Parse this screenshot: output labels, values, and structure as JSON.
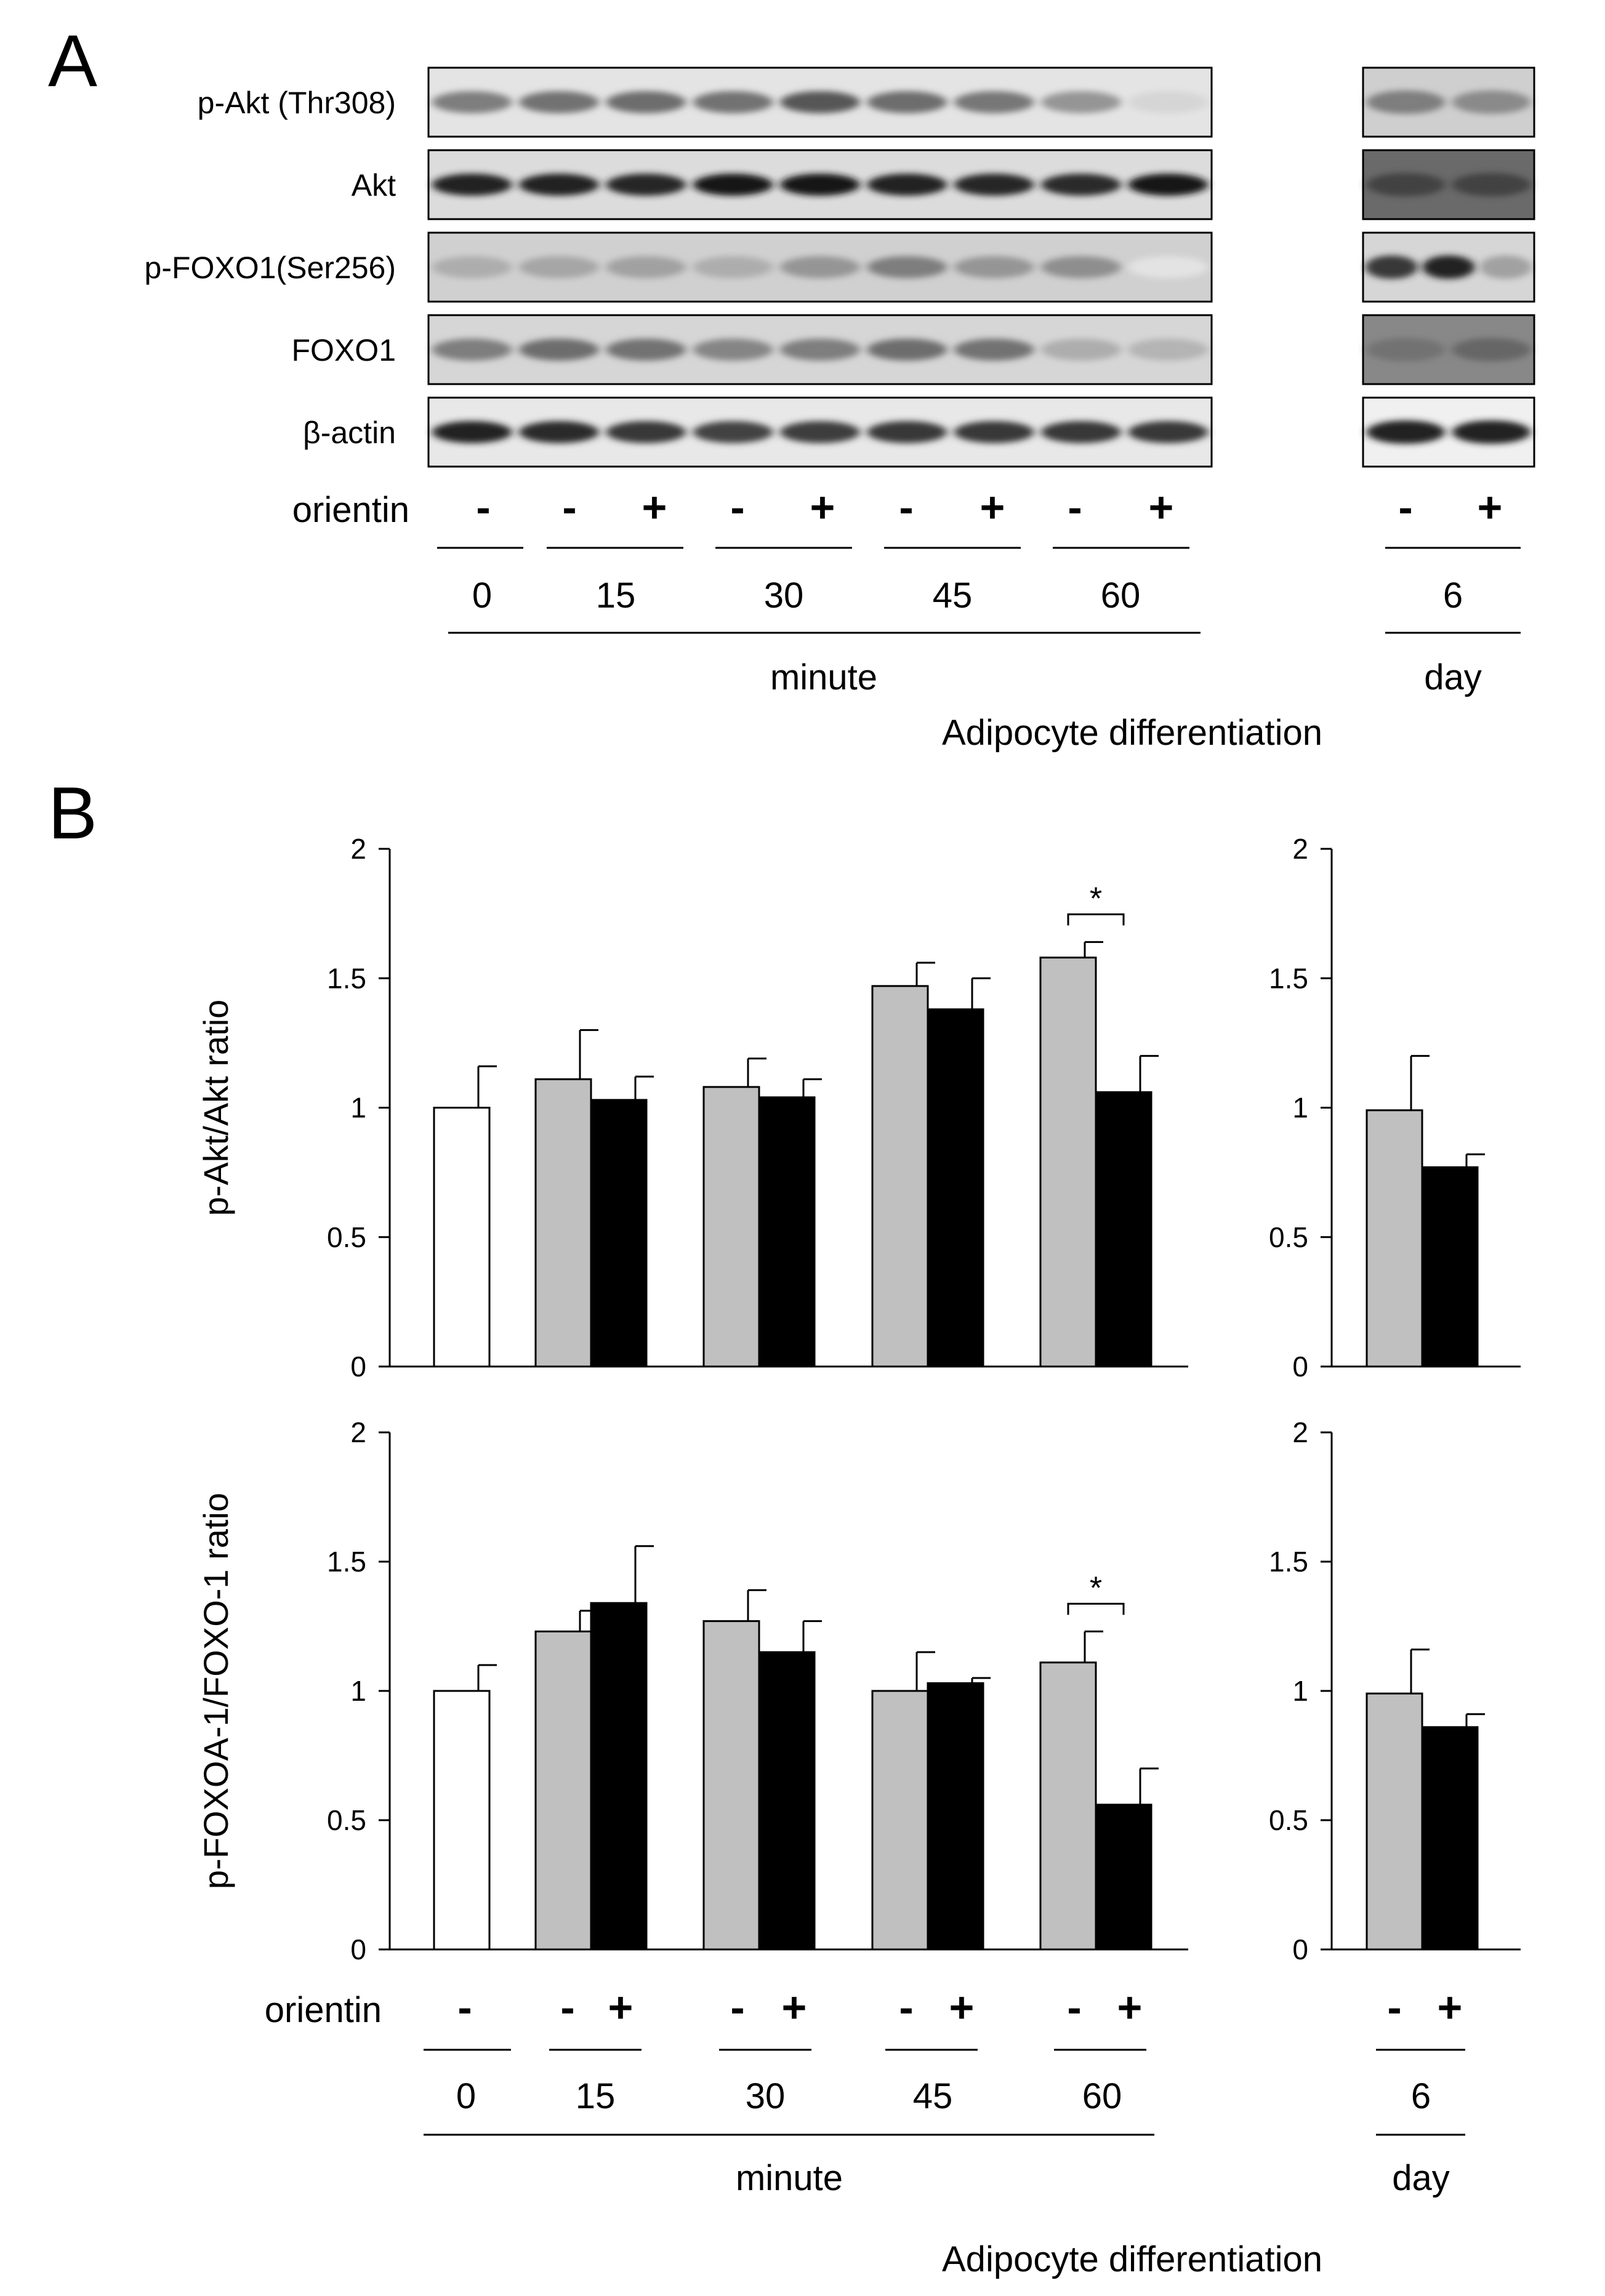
{
  "panel_a": {
    "letter": "A",
    "blot_labels": [
      "p-Akt (Thr308)",
      "Akt",
      "p-FOXO1(Ser256)",
      "FOXO1",
      "β-actin"
    ],
    "treatment_label": "orientin",
    "minute_signs": [
      "-",
      "-",
      "+",
      "-",
      "+",
      "-",
      "+",
      "-",
      "+"
    ],
    "day_signs": [
      "-",
      "+"
    ],
    "minute_times": [
      "0",
      "15",
      "30",
      "45",
      "60"
    ],
    "day_times": [
      "6"
    ],
    "minute_unit": "minute",
    "day_unit": "day",
    "caption": "Adipocyte differentiation"
  },
  "panel_b": {
    "letter": "B",
    "treatment_label": "orientin",
    "minute_signs": [
      "-",
      "-",
      "+",
      "-",
      "+",
      "-",
      "+",
      "-",
      "+"
    ],
    "day_signs": [
      "-",
      "+"
    ],
    "minute_times": [
      "0",
      "15",
      "30",
      "45",
      "60"
    ],
    "day_times": [
      "6"
    ],
    "minute_unit": "minute",
    "day_unit": "day",
    "caption": "Adipocyte differentiation",
    "significance_mark": "*"
  },
  "colors": {
    "control": "#ffffff",
    "vehicle": "#c0c0c0",
    "orientin": "#000000",
    "axis": "#000000"
  },
  "chart_data": [
    {
      "type": "bar",
      "panel": "B-top-minute",
      "ylabel": "p-Akt/Akt ratio",
      "ylim": [
        0,
        2
      ],
      "yticks": [
        "0",
        "0.5",
        "1",
        "1.5",
        "2"
      ],
      "categories": [
        "0",
        "15",
        "30",
        "45",
        "60"
      ],
      "series": [
        {
          "name": "control",
          "values": [
            1.0,
            null,
            null,
            null,
            null
          ],
          "errors": [
            0.16,
            null,
            null,
            null,
            null
          ]
        },
        {
          "name": "orientin -",
          "values": [
            null,
            1.11,
            1.08,
            1.47,
            1.58
          ],
          "errors": [
            null,
            0.19,
            0.11,
            0.09,
            0.06
          ]
        },
        {
          "name": "orientin +",
          "values": [
            null,
            1.03,
            1.04,
            1.38,
            1.06
          ],
          "errors": [
            null,
            0.09,
            0.07,
            0.12,
            0.14
          ]
        }
      ],
      "annotations": [
        {
          "category": "60",
          "text": "*"
        }
      ]
    },
    {
      "type": "bar",
      "panel": "B-top-day",
      "ylabel": "",
      "ylim": [
        0,
        2
      ],
      "yticks": [
        "0",
        "0.5",
        "1",
        "1.5",
        "2"
      ],
      "categories": [
        "6"
      ],
      "series": [
        {
          "name": "orientin -",
          "values": [
            0.99
          ],
          "errors": [
            0.21
          ]
        },
        {
          "name": "orientin +",
          "values": [
            0.77
          ],
          "errors": [
            0.05
          ]
        }
      ]
    },
    {
      "type": "bar",
      "panel": "B-bottom-minute",
      "ylabel": "p-FOXOA-1/FOXO-1 ratio",
      "ylim": [
        0,
        2
      ],
      "yticks": [
        "0",
        "0.5",
        "1",
        "1.5",
        "2"
      ],
      "categories": [
        "0",
        "15",
        "30",
        "45",
        "60"
      ],
      "series": [
        {
          "name": "control",
          "values": [
            1.0,
            null,
            null,
            null,
            null
          ],
          "errors": [
            0.1,
            null,
            null,
            null,
            null
          ]
        },
        {
          "name": "orientin -",
          "values": [
            null,
            1.23,
            1.27,
            1.0,
            1.11
          ],
          "errors": [
            null,
            0.08,
            0.12,
            0.15,
            0.12
          ]
        },
        {
          "name": "orientin +",
          "values": [
            null,
            1.34,
            1.15,
            1.03,
            0.56
          ],
          "errors": [
            null,
            0.22,
            0.12,
            0.02,
            0.14
          ]
        }
      ],
      "annotations": [
        {
          "category": "60",
          "text": "*"
        }
      ]
    },
    {
      "type": "bar",
      "panel": "B-bottom-day",
      "ylabel": "",
      "ylim": [
        0,
        2
      ],
      "yticks": [
        "0",
        "0.5",
        "1",
        "1.5",
        "2"
      ],
      "categories": [
        "6"
      ],
      "series": [
        {
          "name": "orientin -",
          "values": [
            0.99
          ],
          "errors": [
            0.17
          ]
        },
        {
          "name": "orientin +",
          "values": [
            0.86
          ],
          "errors": [
            0.05
          ]
        }
      ]
    }
  ]
}
